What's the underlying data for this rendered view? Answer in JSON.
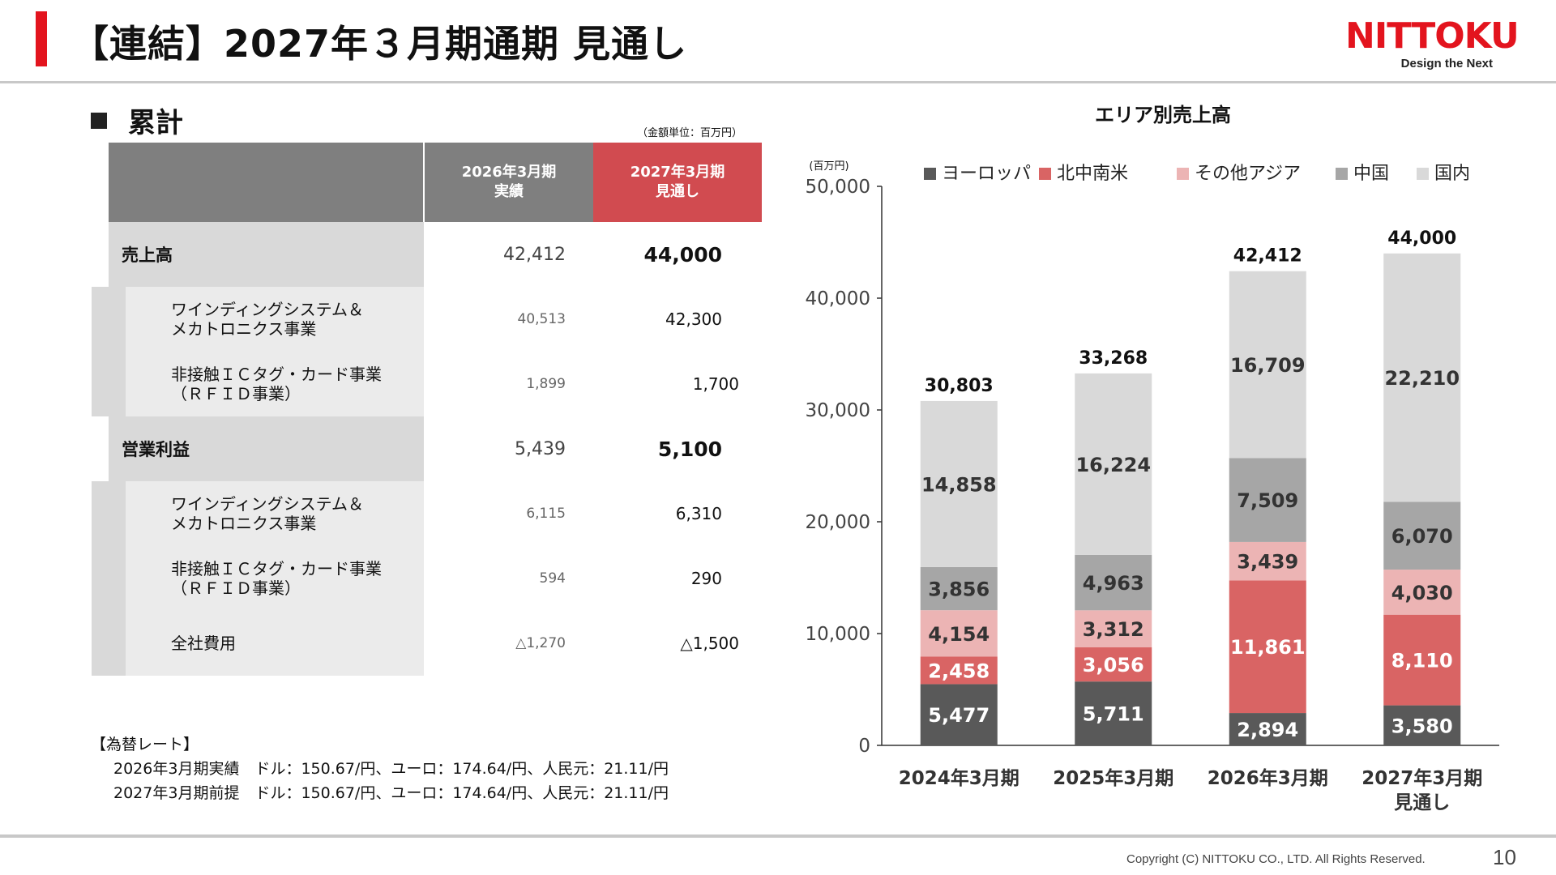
{
  "header": {
    "title": "【連結】2027年３月期通期 見通し",
    "logo_text": "NITTOKU",
    "logo_tagline": "Design the Next",
    "brand_color": "#e3141e"
  },
  "table_section": {
    "title": "累計",
    "unit_note": "（金額単位：百万円）",
    "col_actual": [
      "2026年3月期",
      "実績"
    ],
    "col_forecast": [
      "2027年3月期",
      "見通し"
    ],
    "rows": [
      {
        "level": "main",
        "label": [
          "売上高"
        ],
        "actual": "42,412",
        "forecast": "44,000"
      },
      {
        "level": "sub",
        "label": [
          "ワインディングシステム＆",
          "メカトロニクス事業"
        ],
        "actual": "40,513",
        "forecast": "42,300"
      },
      {
        "level": "sub",
        "label": [
          "非接触ＩＣタグ・カード事業",
          "（ＲＦＩＤ事業）"
        ],
        "actual": "1,899",
        "forecast": "1,700"
      },
      {
        "level": "main",
        "label": [
          "営業利益"
        ],
        "actual": "5,439",
        "forecast": "5,100"
      },
      {
        "level": "sub",
        "label": [
          "ワインディングシステム＆",
          "メカトロニクス事業"
        ],
        "actual": "6,115",
        "forecast": "6,310"
      },
      {
        "level": "sub",
        "label": [
          "非接触ＩＣタグ・カード事業",
          "（ＲＦＩＤ事業）"
        ],
        "actual": "594",
        "forecast": "290"
      },
      {
        "level": "sub",
        "label": [
          "全社費用"
        ],
        "actual": "△1,270",
        "forecast": "△1,500"
      }
    ]
  },
  "fx": {
    "title": "【為替レート】",
    "lines": [
      "2026年3月期実績　ドル：150.67/円、ユーロ：174.64/円、人民元：21.11/円",
      "2027年3月期前提　ドル：150.67/円、ユーロ：174.64/円、人民元：21.11/円"
    ]
  },
  "chart_data": {
    "type": "bar",
    "stacked": true,
    "title": "エリア別売上高",
    "unit_label": "(百万円)",
    "categories": [
      [
        "2024年3月期"
      ],
      [
        "2025年3月期"
      ],
      [
        "2026年3月期"
      ],
      [
        "2027年3月期",
        "見通し"
      ]
    ],
    "series": [
      {
        "name": "ヨーロッパ",
        "color": "#595959",
        "values": [
          5477,
          5711,
          2894,
          3580
        ]
      },
      {
        "name": "北中南米",
        "color": "#d96464",
        "values": [
          2458,
          3056,
          11861,
          8110
        ]
      },
      {
        "name": "その他アジア",
        "color": "#ecb4b4",
        "values": [
          4154,
          3312,
          3439,
          4030
        ]
      },
      {
        "name": "中国",
        "color": "#a6a6a6",
        "values": [
          3856,
          4963,
          7509,
          6070
        ]
      },
      {
        "name": "国内",
        "color": "#d9d9d9",
        "values": [
          14858,
          16224,
          16709,
          22210
        ]
      }
    ],
    "totals": [
      "30,803",
      "33,268",
      "42,412",
      "44,000"
    ],
    "yticks": [
      0,
      10000,
      20000,
      30000,
      40000,
      50000
    ],
    "ytick_labels": [
      "0",
      "10,000",
      "20,000",
      "30,000",
      "40,000",
      "50,000"
    ],
    "ylim": [
      0,
      50000
    ],
    "legend_position": "top",
    "grid": false
  },
  "footer": {
    "copyright": "Copyright  (C) NITTOKU CO., LTD.  All Rights Reserved.",
    "page_number": "10"
  }
}
